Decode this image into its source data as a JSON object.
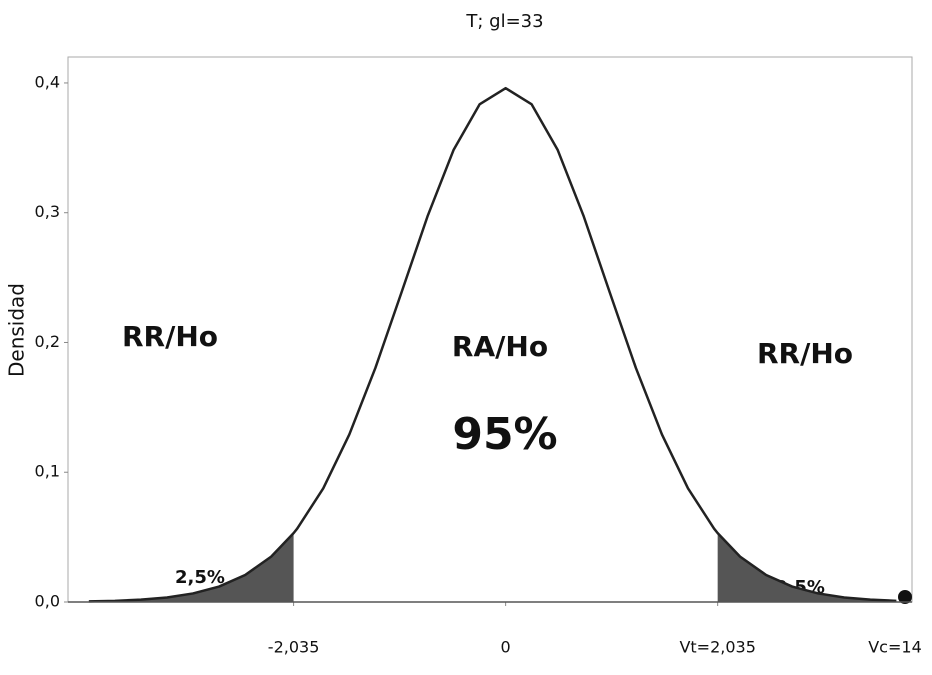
{
  "chart_data": {
    "type": "density",
    "title": "T; gl=33",
    "y_label": "Densidad",
    "x": [
      -4,
      -3.75,
      -3.5,
      -3.25,
      -3,
      -2.75,
      -2.5,
      -2.25,
      -2.035,
      -2,
      -1.75,
      -1.5,
      -1.25,
      -1,
      -0.75,
      -0.5,
      -0.25,
      0,
      0.25,
      0.5,
      0.75,
      1,
      1.25,
      1.5,
      1.75,
      2,
      2.035,
      2.25,
      2.5,
      2.75,
      3,
      3.25,
      3.5,
      3.75
    ],
    "values": [
      0.0005,
      0.0009,
      0.0018,
      0.0035,
      0.0066,
      0.0119,
      0.0208,
      0.035,
      0.0531,
      0.0566,
      0.0876,
      0.1291,
      0.1804,
      0.2384,
      0.2971,
      0.3483,
      0.3835,
      0.396,
      0.3835,
      0.3483,
      0.2971,
      0.2384,
      0.1804,
      0.1291,
      0.0876,
      0.0566,
      0.0531,
      0.035,
      0.0208,
      0.0119,
      0.0066,
      0.0035,
      0.0018,
      0.0009
    ],
    "color": "#222222",
    "shade_color": "#555555",
    "critical_values": [
      -2.035,
      2.035
    ],
    "xlim": [
      -4.2,
      3.9
    ],
    "ylim": [
      0,
      0.42
    ],
    "xticks": [
      {
        "value": -2.035,
        "label": "-2,035"
      },
      0,
      {
        "value": 2.035,
        "label": "Vt=2,035"
      }
    ],
    "yticks": [
      {
        "value": 0,
        "label": "0,0"
      },
      {
        "value": 0.1,
        "label": "0,1"
      },
      {
        "value": 0.2,
        "label": "0,2"
      },
      {
        "value": 0.3,
        "label": "0,3"
      },
      {
        "value": 0.4,
        "label": "0,4"
      }
    ],
    "annotations": [
      "RR/Ho",
      "RA/Ho",
      "95%",
      "RR/Ho",
      "2,5%",
      "2,5%",
      "Vc=14"
    ]
  }
}
